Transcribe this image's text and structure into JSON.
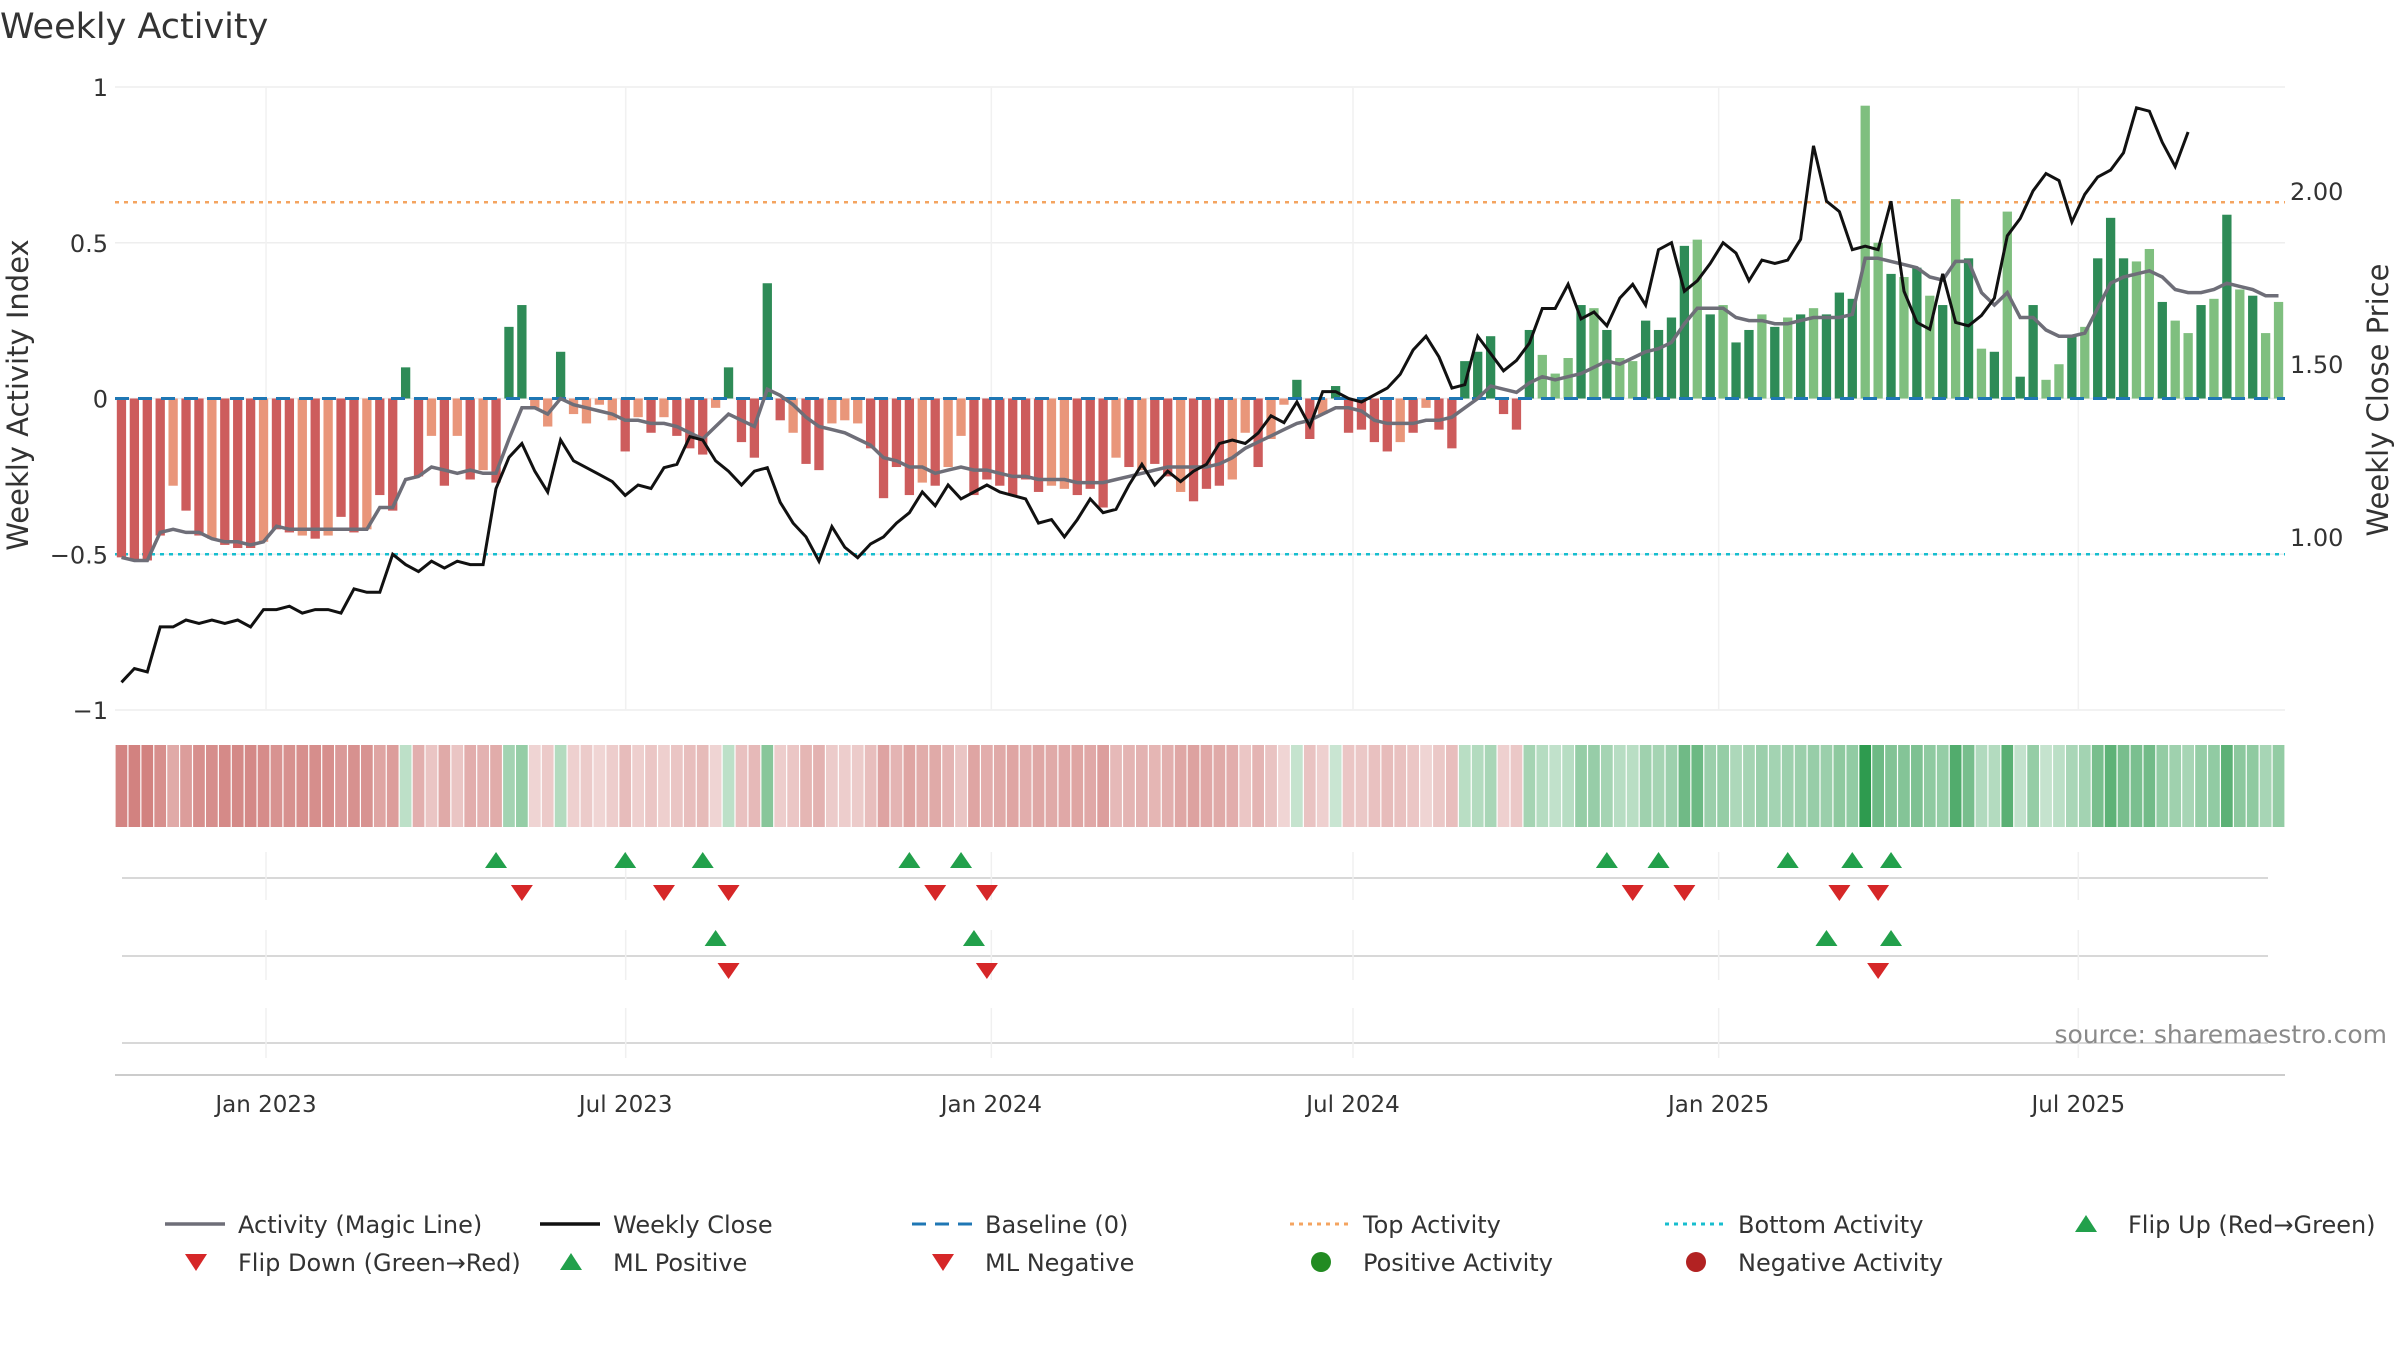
{
  "chart_data": {
    "type": "bar",
    "title": "Weekly Activity",
    "ylabel_left": "Weekly Activity Index",
    "ylabel_right": "Weekly Close Price",
    "ylim_left": [
      -1,
      1
    ],
    "ylim_right": [
      0.5,
      2.3
    ],
    "left_ticks": [
      1,
      0.5,
      0,
      -0.5,
      -1
    ],
    "left_tick_labels": [
      "1",
      "0.5",
      "0",
      "−0.5",
      "−1"
    ],
    "right_ticks": [
      2.0,
      1.5,
      1.0
    ],
    "right_tick_labels": [
      "2.00",
      "1.50",
      "1.00"
    ],
    "x_range": [
      "2022-10-17",
      "2025-10-13"
    ],
    "x_ticks": [
      "2023-01-01",
      "2023-07-01",
      "2024-01-01",
      "2024-07-01",
      "2025-01-01",
      "2025-07-01"
    ],
    "x_tick_labels": [
      "Jan 2023",
      "Jul 2023",
      "Jan 2024",
      "Jul 2024",
      "Jan 2025",
      "Jul 2025"
    ],
    "grid": true,
    "levels": {
      "baseline": 0,
      "top_activity": 0.63,
      "bottom_activity": -0.5
    },
    "colors": {
      "pos_strong": "#2e8b57",
      "pos_weak": "#7fbf7f",
      "neg_strong": "#cd5c5c",
      "neg_weak": "#e9967a",
      "magic_line": "#6e6e78",
      "close": "#111111",
      "baseline": "#1f77b4",
      "top": "#f4a460",
      "bottom": "#17becf",
      "flip_up": "#22a04b",
      "flip_down": "#d62728",
      "pos_dot": "#228b22",
      "neg_dot": "#b22222",
      "source": "#8a8a8a"
    },
    "activity": [
      -0.51,
      -0.52,
      -0.52,
      -0.44,
      -0.28,
      -0.36,
      -0.44,
      -0.45,
      -0.47,
      -0.48,
      -0.48,
      -0.46,
      -0.42,
      -0.43,
      -0.44,
      -0.45,
      -0.44,
      -0.38,
      -0.43,
      -0.42,
      -0.31,
      -0.36,
      0.1,
      -0.25,
      -0.12,
      -0.28,
      -0.12,
      -0.26,
      -0.23,
      -0.27,
      0.23,
      0.3,
      -0.03,
      -0.09,
      0.15,
      -0.05,
      -0.08,
      -0.02,
      -0.07,
      -0.17,
      -0.06,
      -0.11,
      -0.06,
      -0.12,
      -0.16,
      -0.18,
      -0.03,
      0.1,
      -0.14,
      -0.19,
      0.37,
      -0.07,
      -0.11,
      -0.21,
      -0.23,
      -0.08,
      -0.07,
      -0.08,
      -0.16,
      -0.32,
      -0.22,
      -0.31,
      -0.27,
      -0.28,
      -0.22,
      -0.12,
      -0.31,
      -0.26,
      -0.28,
      -0.31,
      -0.26,
      -0.3,
      -0.28,
      -0.29,
      -0.31,
      -0.29,
      -0.35,
      -0.19,
      -0.22,
      -0.23,
      -0.21,
      -0.25,
      -0.3,
      -0.33,
      -0.29,
      -0.28,
      -0.26,
      -0.11,
      -0.22,
      -0.13,
      -0.02,
      0.06,
      -0.13,
      -0.05,
      0.04,
      -0.11,
      -0.1,
      -0.14,
      -0.17,
      -0.14,
      -0.11,
      -0.03,
      -0.1,
      -0.16,
      0.12,
      0.15,
      0.2,
      -0.05,
      -0.1,
      0.22,
      0.14,
      0.08,
      0.13,
      0.3,
      0.29,
      0.22,
      0.13,
      0.12,
      0.25,
      0.22,
      0.26,
      0.49,
      0.51,
      0.27,
      0.3,
      0.18,
      0.22,
      0.27,
      0.23,
      0.26,
      0.27,
      0.29,
      0.27,
      0.34,
      0.32,
      0.94,
      0.5,
      0.4,
      0.39,
      0.42,
      0.33,
      0.3,
      0.64,
      0.45,
      0.16,
      0.15,
      0.6,
      0.07,
      0.3,
      0.06,
      0.11,
      0.2,
      0.23,
      0.45,
      0.58,
      0.45,
      0.44,
      0.48,
      0.31,
      0.25,
      0.21,
      0.3,
      0.32,
      0.59,
      0.35,
      0.33,
      0.21,
      0.31
    ],
    "activity_strength": [
      1,
      1,
      1,
      1,
      0,
      1,
      1,
      0,
      1,
      1,
      1,
      0,
      1,
      1,
      0,
      1,
      0,
      1,
      1,
      0,
      1,
      1,
      1,
      1,
      0,
      1,
      0,
      1,
      0,
      1,
      1,
      1,
      0,
      0,
      1,
      0,
      0,
      0,
      0,
      1,
      0,
      1,
      0,
      1,
      1,
      1,
      0,
      1,
      1,
      1,
      1,
      1,
      0,
      1,
      1,
      0,
      0,
      0,
      1,
      1,
      1,
      1,
      0,
      1,
      0,
      0,
      1,
      1,
      1,
      1,
      1,
      1,
      0,
      0,
      1,
      1,
      1,
      0,
      1,
      0,
      1,
      1,
      0,
      1,
      1,
      1,
      0,
      0,
      1,
      0,
      0,
      1,
      1,
      0,
      1,
      1,
      1,
      1,
      1,
      0,
      1,
      0,
      1,
      1,
      1,
      1,
      1,
      1,
      1,
      1,
      0,
      0,
      0,
      1,
      0,
      1,
      0,
      0,
      1,
      1,
      1,
      1,
      0,
      1,
      0,
      1,
      1,
      0,
      1,
      0,
      1,
      0,
      1,
      1,
      1,
      0,
      0,
      1,
      0,
      1,
      0,
      1,
      0,
      1,
      0,
      1,
      0,
      1,
      1,
      0,
      0,
      1,
      0,
      1,
      1,
      1,
      0,
      0,
      1,
      0,
      0,
      1,
      0,
      1,
      0,
      1,
      0
    ],
    "magic_line": [
      -0.51,
      -0.52,
      -0.52,
      -0.43,
      -0.42,
      -0.43,
      -0.43,
      -0.45,
      -0.46,
      -0.46,
      -0.47,
      -0.46,
      -0.41,
      -0.42,
      -0.42,
      -0.42,
      -0.42,
      -0.42,
      -0.42,
      -0.42,
      -0.35,
      -0.35,
      -0.26,
      -0.25,
      -0.22,
      -0.23,
      -0.24,
      -0.23,
      -0.24,
      -0.24,
      -0.13,
      -0.03,
      -0.03,
      -0.05,
      0.0,
      -0.02,
      -0.03,
      -0.04,
      -0.05,
      -0.07,
      -0.07,
      -0.08,
      -0.08,
      -0.09,
      -0.11,
      -0.13,
      -0.09,
      -0.05,
      -0.07,
      -0.09,
      0.03,
      0.01,
      -0.02,
      -0.06,
      -0.09,
      -0.1,
      -0.11,
      -0.13,
      -0.15,
      -0.19,
      -0.2,
      -0.22,
      -0.22,
      -0.24,
      -0.23,
      -0.22,
      -0.23,
      -0.23,
      -0.24,
      -0.25,
      -0.25,
      -0.26,
      -0.26,
      -0.26,
      -0.27,
      -0.27,
      -0.27,
      -0.26,
      -0.25,
      -0.24,
      -0.23,
      -0.22,
      -0.22,
      -0.22,
      -0.22,
      -0.21,
      -0.19,
      -0.16,
      -0.14,
      -0.12,
      -0.1,
      -0.08,
      -0.07,
      -0.05,
      -0.03,
      -0.03,
      -0.04,
      -0.07,
      -0.08,
      -0.08,
      -0.08,
      -0.07,
      -0.07,
      -0.06,
      -0.03,
      0.0,
      0.04,
      0.03,
      0.02,
      0.05,
      0.07,
      0.06,
      0.07,
      0.08,
      0.1,
      0.12,
      0.11,
      0.13,
      0.15,
      0.16,
      0.18,
      0.24,
      0.29,
      0.29,
      0.29,
      0.26,
      0.25,
      0.25,
      0.24,
      0.24,
      0.25,
      0.26,
      0.26,
      0.26,
      0.27,
      0.45,
      0.45,
      0.44,
      0.43,
      0.42,
      0.39,
      0.38,
      0.44,
      0.44,
      0.34,
      0.3,
      0.34,
      0.26,
      0.26,
      0.22,
      0.2,
      0.2,
      0.21,
      0.29,
      0.37,
      0.39,
      0.4,
      0.41,
      0.39,
      0.35,
      0.34,
      0.34,
      0.35,
      0.37,
      0.36,
      0.35,
      0.33,
      0.33
    ],
    "weekly_close": [
      0.58,
      0.62,
      0.61,
      0.74,
      0.74,
      0.76,
      0.75,
      0.76,
      0.75,
      0.76,
      0.74,
      0.79,
      0.79,
      0.8,
      0.78,
      0.79,
      0.79,
      0.78,
      0.85,
      0.84,
      0.84,
      0.95,
      0.92,
      0.9,
      0.93,
      0.91,
      0.93,
      0.92,
      0.92,
      1.14,
      1.23,
      1.27,
      1.19,
      1.13,
      1.28,
      1.22,
      1.2,
      1.18,
      1.16,
      1.12,
      1.15,
      1.14,
      1.2,
      1.21,
      1.29,
      1.28,
      1.22,
      1.19,
      1.15,
      1.19,
      1.2,
      1.1,
      1.04,
      1.0,
      0.93,
      1.03,
      0.97,
      0.94,
      0.98,
      1.0,
      1.04,
      1.07,
      1.13,
      1.09,
      1.15,
      1.11,
      1.13,
      1.15,
      1.13,
      1.12,
      1.11,
      1.04,
      1.05,
      1.0,
      1.05,
      1.11,
      1.07,
      1.08,
      1.15,
      1.21,
      1.15,
      1.19,
      1.16,
      1.19,
      1.21,
      1.27,
      1.28,
      1.27,
      1.3,
      1.35,
      1.33,
      1.39,
      1.32,
      1.42,
      1.42,
      1.4,
      1.39,
      1.41,
      1.43,
      1.47,
      1.54,
      1.58,
      1.52,
      1.43,
      1.44,
      1.58,
      1.53,
      1.48,
      1.51,
      1.56,
      1.66,
      1.66,
      1.73,
      1.63,
      1.65,
      1.61,
      1.69,
      1.73,
      1.67,
      1.83,
      1.85,
      1.71,
      1.74,
      1.79,
      1.85,
      1.82,
      1.74,
      1.8,
      1.79,
      1.8,
      1.86,
      2.13,
      1.97,
      1.94,
      1.83,
      1.84,
      1.83,
      1.97,
      1.71,
      1.62,
      1.6,
      1.76,
      1.62,
      1.61,
      1.64,
      1.69,
      1.87,
      1.92,
      2.0,
      2.05,
      2.03,
      1.91,
      1.99,
      2.04,
      2.06,
      2.11,
      2.24,
      2.23,
      2.14,
      2.07,
      2.17
    ]
  },
  "legend": {
    "items": [
      {
        "label": "Activity (Magic Line)",
        "symbol": "line-solid-gray"
      },
      {
        "label": "Weekly Close",
        "symbol": "line-solid-black"
      },
      {
        "label": "Baseline (0)",
        "symbol": "line-dashed-blue"
      },
      {
        "label": "Top Activity",
        "symbol": "line-dotted-orange"
      },
      {
        "label": "Bottom Activity",
        "symbol": "line-dotted-cyan"
      },
      {
        "label": "Flip Up (Red→Green)",
        "symbol": "triangle-up-green"
      },
      {
        "label": "Flip Down (Green→Red)",
        "symbol": "triangle-down-red"
      },
      {
        "label": "ML Positive",
        "symbol": "triangle-up-green"
      },
      {
        "label": "ML Negative",
        "symbol": "triangle-down-red"
      },
      {
        "label": "Positive Activity",
        "symbol": "dot-green"
      },
      {
        "label": "Negative Activity",
        "symbol": "dot-red"
      }
    ]
  },
  "signals": {
    "flip_up": [
      29,
      39,
      45,
      61,
      65,
      115,
      119,
      129,
      134,
      137
    ],
    "flip_down": [
      31,
      42,
      47,
      63,
      67,
      117,
      121,
      133,
      136
    ],
    "ml_positive": [
      46,
      66,
      132,
      137
    ],
    "ml_negative": [
      47,
      67,
      136
    ]
  },
  "source": "source: sharemaestro.com"
}
